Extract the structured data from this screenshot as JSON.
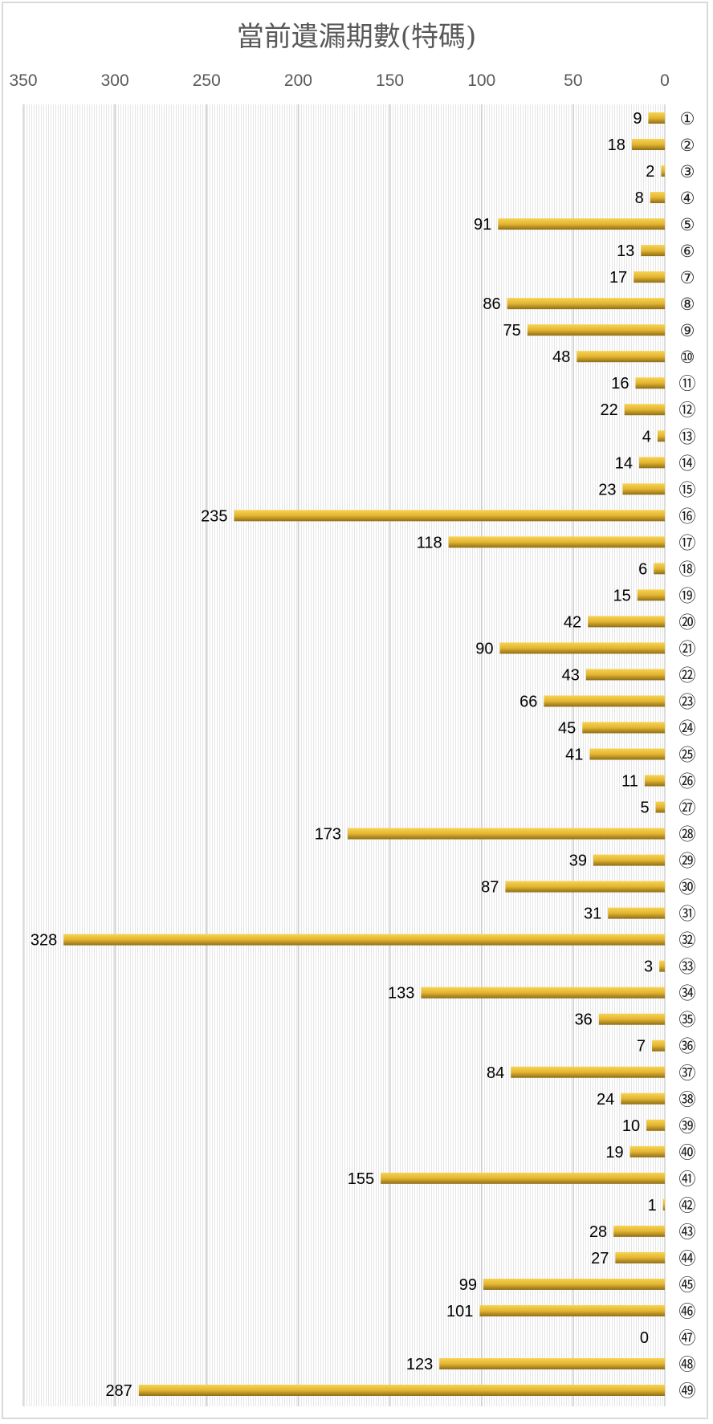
{
  "chart_data": {
    "type": "bar",
    "orientation": "horizontal",
    "x_axis_reversed": true,
    "title": "當前遺漏期數(特碼)",
    "xlim": [
      0,
      350
    ],
    "xticks": [
      350,
      300,
      250,
      200,
      150,
      100,
      50,
      0
    ],
    "grid": true,
    "bar_color": "#d4a82a",
    "categories": [
      "①",
      "②",
      "③",
      "④",
      "⑤",
      "⑥",
      "⑦",
      "⑧",
      "⑨",
      "⑩",
      "⑪",
      "⑫",
      "⑬",
      "⑭",
      "⑮",
      "⑯",
      "⑰",
      "⑱",
      "⑲",
      "⑳",
      "㉑",
      "㉒",
      "㉓",
      "㉔",
      "㉕",
      "㉖",
      "㉗",
      "㉘",
      "㉙",
      "㉚",
      "㉛",
      "㉜",
      "㉝",
      "㉞",
      "㉟",
      "㊱",
      "㊲",
      "㊳",
      "㊴",
      "㊵",
      "㊶",
      "㊷",
      "㊸",
      "㊹",
      "㊺",
      "㊻",
      "㊼",
      "㊽",
      "㊾"
    ],
    "values": [
      9,
      18,
      2,
      8,
      91,
      13,
      17,
      86,
      75,
      48,
      16,
      22,
      4,
      14,
      23,
      235,
      118,
      6,
      15,
      42,
      90,
      43,
      66,
      45,
      41,
      11,
      5,
      173,
      39,
      87,
      31,
      328,
      3,
      133,
      36,
      7,
      84,
      24,
      10,
      19,
      155,
      1,
      28,
      27,
      99,
      101,
      0,
      123,
      287
    ]
  }
}
